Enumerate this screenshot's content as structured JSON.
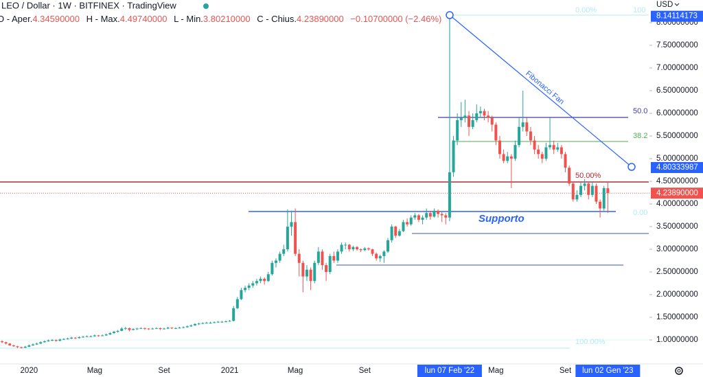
{
  "chart_data": {
    "type": "candlestick",
    "title": "LEO / Dollar · 1W · BITFINEX · TradingView",
    "currency": "USD",
    "ohlc_keys": [
      "O - Aper.",
      "H - Max.",
      "L - Min.",
      "C - Chius."
    ],
    "last_labels": [
      "4.34590000",
      "4.49740000",
      "3.80210000",
      "4.23890000"
    ],
    "change": "−0.10700000 (−2.46%)",
    "up_color": "#26a69a",
    "down_color": "#ef5350",
    "ylim": [
      0.47,
      8.5
    ],
    "yticks": [
      {
        "value": 1.0,
        "label": "1.00000000"
      },
      {
        "value": 1.5,
        "label": "1.50000000"
      },
      {
        "value": 2.0,
        "label": "2.00000000"
      },
      {
        "value": 2.5,
        "label": "2.50000000"
      },
      {
        "value": 3.0,
        "label": "3.00000000"
      },
      {
        "value": 3.5,
        "label": "3.50000000"
      },
      {
        "value": 4.0,
        "label": "4.00000000"
      },
      {
        "value": 4.5,
        "label": "4.50000000"
      },
      {
        "value": 5.0,
        "label": "5.00000000"
      },
      {
        "value": 5.5,
        "label": "5.50000000"
      },
      {
        "value": 6.0,
        "label": "6.00000000"
      },
      {
        "value": 6.5,
        "label": "6.50000000"
      },
      {
        "value": 7.0,
        "label": "7.00000000"
      },
      {
        "value": 7.5,
        "label": "7.50000000"
      },
      {
        "value": 8.0,
        "label": "8.00000000"
      }
    ],
    "grid": false,
    "price_tags": [
      {
        "value": 8.14114173,
        "color": "#2962ff"
      },
      {
        "value": 4.80333987,
        "color": "#2962ff"
      }
    ],
    "last_price": {
      "value": 4.2389,
      "label": "4.23890000",
      "color": "#ef5350"
    },
    "annotations": {
      "fan_title": "Fibonacci Fan",
      "support": "Supporto",
      "fan_levels": [
        "0.00%",
        "100",
        "50.0",
        "38.2",
        "50.00%",
        "0.00",
        "100.00%"
      ]
    },
    "categories": [
      null,
      null,
      null,
      null,
      null,
      null,
      null,
      "2020",
      null,
      null,
      null,
      null,
      null,
      null,
      null,
      null,
      null,
      null,
      null,
      null,
      null,
      null,
      null,
      null,
      "Mag",
      null,
      null,
      null,
      null,
      null,
      null,
      null,
      null,
      null,
      null,
      null,
      null,
      null,
      null,
      null,
      null,
      null,
      "Set",
      null,
      null,
      null,
      null,
      null,
      null,
      null,
      null,
      null,
      null,
      null,
      null,
      null,
      null,
      null,
      null,
      "2021",
      null,
      null,
      null,
      null,
      null,
      null,
      null,
      null,
      null,
      null,
      null,
      null,
      null,
      null,
      null,
      null,
      "Mag",
      null,
      null,
      null,
      null,
      null,
      null,
      null,
      null,
      null,
      null,
      null,
      null,
      null,
      null,
      null,
      null,
      null,
      "Set",
      null,
      null,
      null,
      null,
      null,
      null,
      null,
      null,
      null,
      null,
      null,
      null,
      null,
      null,
      null,
      null,
      null,
      null,
      null,
      null,
      null,
      "lun 07 Feb '22",
      null,
      null,
      null,
      null,
      null,
      null,
      null,
      null,
      null,
      null,
      null,
      "Mag",
      null,
      null,
      null,
      null,
      null,
      null,
      null,
      null,
      null,
      null,
      null,
      null,
      null,
      null,
      null,
      null,
      null,
      "Set",
      null,
      null,
      null,
      null,
      null,
      null,
      null,
      null,
      null,
      null,
      "lun 02 Gen '23"
    ],
    "ohlc": [
      [
        0.97,
        0.99,
        0.93,
        0.95
      ],
      [
        0.95,
        0.96,
        0.9,
        0.92
      ],
      [
        0.92,
        0.93,
        0.87,
        0.88
      ],
      [
        0.88,
        0.89,
        0.85,
        0.86
      ],
      [
        0.86,
        0.87,
        0.82,
        0.84
      ],
      [
        0.84,
        0.85,
        0.81,
        0.83
      ],
      [
        0.83,
        0.87,
        0.82,
        0.85
      ],
      [
        0.85,
        0.9,
        0.84,
        0.88
      ],
      [
        0.88,
        0.92,
        0.87,
        0.9
      ],
      [
        0.9,
        0.94,
        0.89,
        0.92
      ],
      [
        0.92,
        0.97,
        0.91,
        0.95
      ],
      [
        0.95,
        0.99,
        0.94,
        0.97
      ],
      [
        0.97,
        1.01,
        0.96,
        0.99
      ],
      [
        0.99,
        1.02,
        0.97,
        1.0
      ],
      [
        1.0,
        1.01,
        0.96,
        0.98
      ],
      [
        0.98,
        1.03,
        0.97,
        1.01
      ],
      [
        1.01,
        1.04,
        1.0,
        1.02
      ],
      [
        1.02,
        1.05,
        1.01,
        1.03
      ],
      [
        1.03,
        1.07,
        1.02,
        1.05
      ],
      [
        1.05,
        1.06,
        1.02,
        1.04
      ],
      [
        1.04,
        1.08,
        1.03,
        1.06
      ],
      [
        1.06,
        1.09,
        1.05,
        1.07
      ],
      [
        1.07,
        1.1,
        1.06,
        1.08
      ],
      [
        1.08,
        1.1,
        1.06,
        1.08
      ],
      [
        1.08,
        1.12,
        1.07,
        1.1
      ],
      [
        1.1,
        1.11,
        1.07,
        1.09
      ],
      [
        1.09,
        1.12,
        1.08,
        1.1
      ],
      [
        1.1,
        1.14,
        1.09,
        1.12
      ],
      [
        1.12,
        1.17,
        1.11,
        1.15
      ],
      [
        1.15,
        1.2,
        1.14,
        1.18
      ],
      [
        1.18,
        1.22,
        1.16,
        1.2
      ],
      [
        1.2,
        1.28,
        1.19,
        1.25
      ],
      [
        1.25,
        1.29,
        1.22,
        1.26
      ],
      [
        1.26,
        1.27,
        1.19,
        1.22
      ],
      [
        1.22,
        1.26,
        1.21,
        1.24
      ],
      [
        1.24,
        1.27,
        1.22,
        1.25
      ],
      [
        1.25,
        1.28,
        1.24,
        1.26
      ],
      [
        1.26,
        1.27,
        1.22,
        1.25
      ],
      [
        1.25,
        1.26,
        1.22,
        1.24
      ],
      [
        1.24,
        1.27,
        1.23,
        1.25
      ],
      [
        1.25,
        1.28,
        1.24,
        1.26
      ],
      [
        1.26,
        1.27,
        1.22,
        1.24
      ],
      [
        1.24,
        1.27,
        1.23,
        1.25
      ],
      [
        1.25,
        1.29,
        1.24,
        1.27
      ],
      [
        1.27,
        1.28,
        1.24,
        1.26
      ],
      [
        1.26,
        1.28,
        1.24,
        1.26
      ],
      [
        1.26,
        1.29,
        1.25,
        1.27
      ],
      [
        1.27,
        1.3,
        1.26,
        1.28
      ],
      [
        1.28,
        1.32,
        1.27,
        1.3
      ],
      [
        1.3,
        1.34,
        1.29,
        1.32
      ],
      [
        1.32,
        1.37,
        1.31,
        1.35
      ],
      [
        1.35,
        1.38,
        1.33,
        1.36
      ],
      [
        1.36,
        1.39,
        1.35,
        1.37
      ],
      [
        1.37,
        1.4,
        1.36,
        1.38
      ],
      [
        1.38,
        1.4,
        1.36,
        1.38
      ],
      [
        1.38,
        1.41,
        1.37,
        1.39
      ],
      [
        1.39,
        1.42,
        1.38,
        1.4
      ],
      [
        1.4,
        1.42,
        1.38,
        1.4
      ],
      [
        1.4,
        1.43,
        1.39,
        1.41
      ],
      [
        1.41,
        1.44,
        1.4,
        1.42
      ],
      [
        1.42,
        1.75,
        1.41,
        1.7
      ],
      [
        1.7,
        1.95,
        1.68,
        1.9
      ],
      [
        1.9,
        2.15,
        1.88,
        2.1
      ],
      [
        2.1,
        2.2,
        2.05,
        2.15
      ],
      [
        2.15,
        2.25,
        2.1,
        2.2
      ],
      [
        2.2,
        2.3,
        2.15,
        2.25
      ],
      [
        2.25,
        2.35,
        2.2,
        2.3
      ],
      [
        2.3,
        2.4,
        2.25,
        2.35
      ],
      [
        2.35,
        2.38,
        2.22,
        2.3
      ],
      [
        2.3,
        2.5,
        2.28,
        2.45
      ],
      [
        2.45,
        2.75,
        2.42,
        2.7
      ],
      [
        2.7,
        2.8,
        2.6,
        2.75
      ],
      [
        2.75,
        2.95,
        2.7,
        2.9
      ],
      [
        2.9,
        3.1,
        2.85,
        3.0
      ],
      [
        3.0,
        3.88,
        2.95,
        3.5
      ],
      [
        3.5,
        3.85,
        3.3,
        3.6
      ],
      [
        3.6,
        3.9,
        2.85,
        2.9
      ],
      [
        2.9,
        3.0,
        2.4,
        2.7
      ],
      [
        2.7,
        2.75,
        2.05,
        2.4
      ],
      [
        2.4,
        2.65,
        2.3,
        2.55
      ],
      [
        2.55,
        2.6,
        2.1,
        2.3
      ],
      [
        2.3,
        2.75,
        2.25,
        2.7
      ],
      [
        2.7,
        3.05,
        2.65,
        2.95
      ],
      [
        2.95,
        3.0,
        2.55,
        2.65
      ],
      [
        2.65,
        2.7,
        2.3,
        2.5
      ],
      [
        2.5,
        2.9,
        2.45,
        2.85
      ],
      [
        2.85,
        2.95,
        2.7,
        2.75
      ],
      [
        2.75,
        3.0,
        2.7,
        2.95
      ],
      [
        2.95,
        3.15,
        2.9,
        3.1
      ],
      [
        3.1,
        3.15,
        3.0,
        3.1
      ],
      [
        3.1,
        3.12,
        2.95,
        3.0
      ],
      [
        3.0,
        3.08,
        2.96,
        3.05
      ],
      [
        3.05,
        3.07,
        2.97,
        3.0
      ],
      [
        3.0,
        3.02,
        2.94,
        2.98
      ],
      [
        2.98,
        3.05,
        2.96,
        3.02
      ],
      [
        3.02,
        3.04,
        2.97,
        3.0
      ],
      [
        3.0,
        3.01,
        2.85,
        2.9
      ],
      [
        2.9,
        2.93,
        2.75,
        2.8
      ],
      [
        2.8,
        2.88,
        2.72,
        2.85
      ],
      [
        2.85,
        2.98,
        2.7,
        2.95
      ],
      [
        2.95,
        3.25,
        2.92,
        3.2
      ],
      [
        3.2,
        3.55,
        3.15,
        3.5
      ],
      [
        3.5,
        3.52,
        3.25,
        3.3
      ],
      [
        3.3,
        3.45,
        3.28,
        3.4
      ],
      [
        3.4,
        3.65,
        3.38,
        3.6
      ],
      [
        3.6,
        3.68,
        3.5,
        3.55
      ],
      [
        3.55,
        3.75,
        3.52,
        3.7
      ],
      [
        3.7,
        3.8,
        3.65,
        3.75
      ],
      [
        3.75,
        3.78,
        3.6,
        3.65
      ],
      [
        3.65,
        3.75,
        3.55,
        3.7
      ],
      [
        3.7,
        3.9,
        3.65,
        3.8
      ],
      [
        3.8,
        3.85,
        3.65,
        3.72
      ],
      [
        3.72,
        3.9,
        3.7,
        3.85
      ],
      [
        3.85,
        3.88,
        3.7,
        3.78
      ],
      [
        3.78,
        3.82,
        3.6,
        3.75
      ],
      [
        3.75,
        3.8,
        3.55,
        3.7
      ],
      [
        3.7,
        8.14114173,
        3.62,
        4.7
      ],
      [
        4.7,
        5.5,
        4.6,
        5.4
      ],
      [
        5.4,
        6.0,
        5.3,
        5.85
      ],
      [
        5.85,
        6.25,
        5.7,
        5.9
      ],
      [
        5.9,
        6.3,
        5.8,
        5.95
      ],
      [
        5.95,
        6.05,
        5.5,
        5.7
      ],
      [
        5.7,
        6.0,
        5.65,
        5.85
      ],
      [
        5.85,
        6.2,
        5.8,
        6.0
      ],
      [
        6.0,
        6.15,
        5.9,
        6.05
      ],
      [
        6.05,
        6.1,
        5.85,
        5.95
      ],
      [
        5.95,
        6.05,
        5.8,
        5.9
      ],
      [
        5.9,
        5.95,
        5.6,
        5.75
      ],
      [
        5.75,
        5.8,
        5.3,
        5.4
      ],
      [
        5.4,
        5.5,
        5.0,
        5.1
      ],
      [
        5.1,
        5.2,
        4.9,
        4.95
      ],
      [
        4.95,
        5.15,
        4.9,
        5.05
      ],
      [
        5.05,
        5.1,
        4.35,
        5.0
      ],
      [
        5.0,
        5.4,
        4.95,
        5.3
      ],
      [
        5.3,
        5.9,
        5.25,
        5.7
      ],
      [
        5.7,
        6.5,
        5.6,
        5.8
      ],
      [
        5.8,
        5.9,
        5.5,
        5.6
      ],
      [
        5.6,
        5.7,
        5.3,
        5.4
      ],
      [
        5.4,
        5.5,
        5.1,
        5.2
      ],
      [
        5.2,
        5.3,
        5.0,
        5.1
      ],
      [
        5.1,
        5.15,
        4.9,
        5.0
      ],
      [
        5.0,
        5.35,
        4.95,
        5.25
      ],
      [
        5.25,
        5.9,
        5.2,
        5.3
      ],
      [
        5.3,
        5.4,
        5.1,
        5.2
      ],
      [
        5.2,
        5.35,
        5.15,
        5.25
      ],
      [
        5.25,
        5.3,
        5.0,
        5.1
      ],
      [
        5.1,
        5.15,
        4.7,
        4.8
      ],
      [
        4.8,
        4.85,
        4.4,
        4.45
      ],
      [
        4.45,
        4.5,
        4.05,
        4.1
      ],
      [
        4.1,
        4.3,
        4.05,
        4.2
      ],
      [
        4.2,
        4.5,
        4.15,
        4.4
      ],
      [
        4.4,
        4.55,
        4.3,
        4.45
      ],
      [
        4.45,
        4.5,
        4.1,
        4.2
      ],
      [
        4.2,
        4.5,
        4.15,
        4.4
      ],
      [
        4.4,
        4.45,
        4.0,
        4.05
      ],
      [
        4.05,
        4.1,
        3.7,
        3.9
      ],
      [
        3.9,
        4.4,
        3.85,
        4.35
      ],
      [
        4.3459,
        4.4974,
        3.8021,
        4.2389
      ]
    ]
  }
}
